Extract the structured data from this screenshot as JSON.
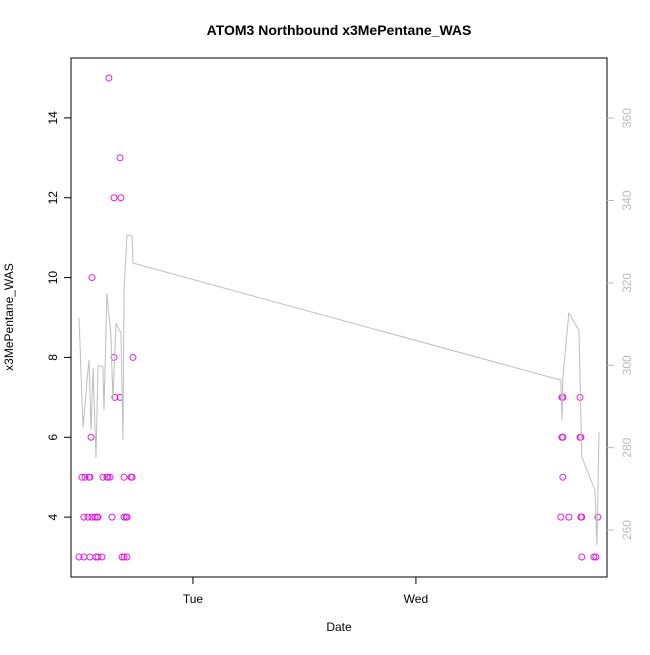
{
  "chart_data": {
    "type": "scatter",
    "title": "ATOM3 Northbound x3MePentane_WAS",
    "xlabel": "Date",
    "ylabel": "x3MePentane_WAS",
    "xlim": [
      0.453,
      2.857
    ],
    "xticks": [
      {
        "value": 1,
        "label": "Tue"
      },
      {
        "value": 2,
        "label": "Wed"
      }
    ],
    "ylim": [
      2.5,
      15.5
    ],
    "yticks": [
      4,
      6,
      8,
      10,
      12,
      14
    ],
    "y2lim": [
      248.6,
      374.6
    ],
    "y2ticks": [
      260,
      280,
      300,
      320,
      340,
      360
    ],
    "series": [
      {
        "type": "scatter",
        "color": "#e01ee0",
        "x": [
          0.489,
          0.502,
          0.511,
          0.511,
          0.516,
          0.529,
          0.534,
          0.538,
          0.538,
          0.543,
          0.547,
          0.547,
          0.561,
          0.565,
          0.57,
          0.574,
          0.574,
          0.592,
          0.596,
          0.614,
          0.619,
          0.623,
          0.628,
          0.637,
          0.646,
          0.646,
          0.65,
          0.673,
          0.673,
          0.677,
          0.682,
          0.691,
          0.691,
          0.691,
          0.7,
          0.704,
          0.704,
          0.722,
          0.727,
          0.731,
          2.65,
          2.655,
          2.659,
          2.655,
          2.659,
          2.659,
          2.686,
          2.736,
          2.736,
          2.74,
          2.74,
          2.744,
          2.744,
          2.798,
          2.807,
          2.816
        ],
        "values": [
          3,
          5,
          4,
          3,
          5,
          4,
          5,
          5,
          3,
          6,
          4,
          10,
          4,
          3,
          4,
          3,
          4,
          3,
          5,
          5,
          5,
          15,
          5,
          4,
          12,
          8,
          7,
          13,
          7,
          12,
          3,
          5,
          3,
          4,
          4,
          4,
          3,
          5,
          5,
          8,
          4,
          7,
          7,
          6,
          6,
          5,
          4,
          7,
          6,
          6,
          4,
          3,
          4,
          3,
          3,
          4
        ]
      },
      {
        "type": "line",
        "color": "#bebebe",
        "axis": "y2",
        "x": [
          0.489,
          0.507,
          0.525,
          0.534,
          0.543,
          0.552,
          0.565,
          0.574,
          0.596,
          0.601,
          0.614,
          0.632,
          0.641,
          0.655,
          0.677,
          0.686,
          0.691,
          0.704,
          0.727,
          0.731,
          2.65,
          2.655,
          2.659,
          2.686,
          2.731,
          2.744,
          2.803,
          2.812,
          2.821
        ],
        "values": [
          311.5,
          284.8,
          296.4,
          301.3,
          284.3,
          299.3,
          277.5,
          299.8,
          299.8,
          289.1,
          317.5,
          307.3,
          291.6,
          310.2,
          307.8,
          281.8,
          318.3,
          331.6,
          331.4,
          324.8,
          296.4,
          286.7,
          296.9,
          312.7,
          308.5,
          277.7,
          269.7,
          256.4,
          283.8
        ]
      }
    ]
  }
}
